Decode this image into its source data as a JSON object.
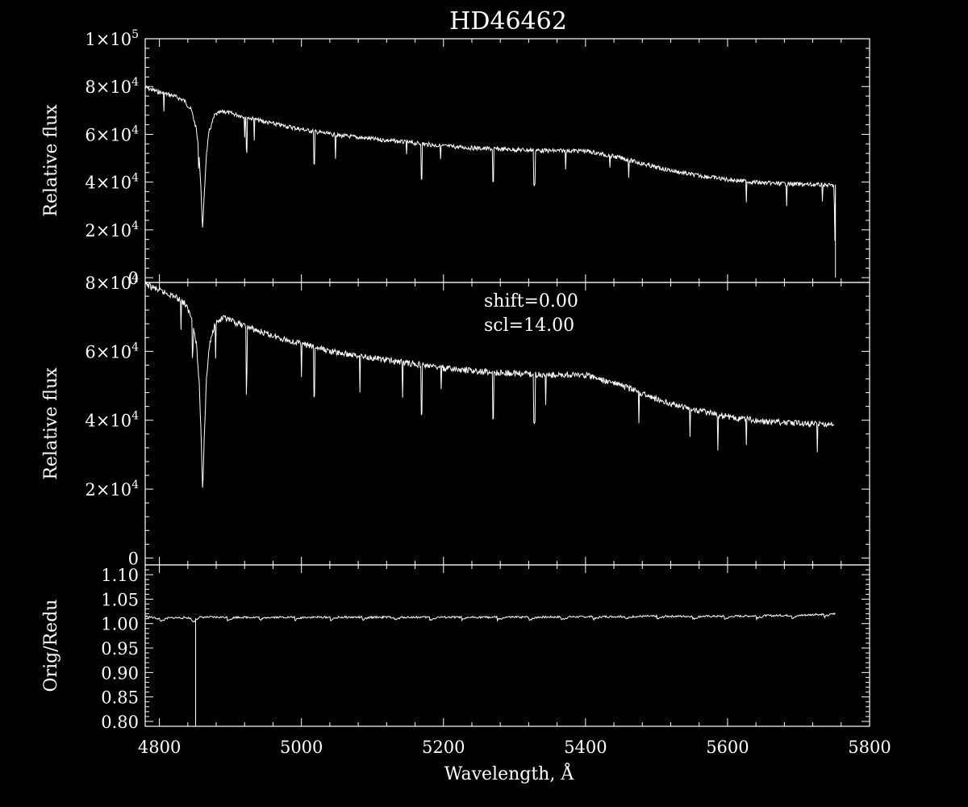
{
  "title": "HD46462",
  "chart_data": [
    {
      "type": "line",
      "panel": "top",
      "ylabel": "Relative flux",
      "xlim": [
        4780,
        5800
      ],
      "ylim": [
        -2000,
        100000
      ],
      "yticks": [
        {
          "value": 0,
          "label": "0"
        },
        {
          "value": 20000,
          "label": "2×10",
          "exp": "4"
        },
        {
          "value": 40000,
          "label": "4×10",
          "exp": "4"
        },
        {
          "value": 60000,
          "label": "6×10",
          "exp": "4"
        },
        {
          "value": 80000,
          "label": "8×10",
          "exp": "4"
        },
        {
          "value": 100000,
          "label": "1×10",
          "exp": "5"
        }
      ],
      "series": [
        {
          "x": [
            4780,
            4800,
            4820,
            4835,
            4845,
            4852,
            4856,
            4859,
            4861,
            4863,
            4866,
            4870,
            4878,
            4890,
            4910,
            4950,
            5000,
            5050,
            5100,
            5150,
            5200,
            5250,
            5300,
            5350,
            5400,
            5450,
            5500,
            5550,
            5600,
            5650,
            5700,
            5750,
            5752
          ],
          "y": [
            80500,
            78500,
            77000,
            75000,
            71000,
            63000,
            52000,
            35000,
            20000,
            35000,
            52000,
            62000,
            69000,
            70500,
            69000,
            66000,
            63000,
            60500,
            59000,
            57500,
            56000,
            55000,
            54500,
            54000,
            54000,
            51000,
            47000,
            44000,
            42000,
            40500,
            40000,
            39500,
            0
          ]
        }
      ],
      "absorption_lines": [
        4923,
        5018,
        5169,
        5270,
        5328
      ]
    },
    {
      "type": "line",
      "panel": "middle",
      "ylabel": "Relative flux",
      "annotations": [
        "shift=0.00",
        "scl=14.00"
      ],
      "xlim": [
        4780,
        5800
      ],
      "ylim": [
        -2000,
        80000
      ],
      "yticks": [
        {
          "value": 0,
          "label": "0"
        },
        {
          "value": 20000,
          "label": "2×10",
          "exp": "4"
        },
        {
          "value": 40000,
          "label": "4×10",
          "exp": "4"
        },
        {
          "value": 60000,
          "label": "6×10",
          "exp": "4"
        },
        {
          "value": 80000,
          "label": "8×10",
          "exp": "4"
        }
      ],
      "series": [
        {
          "x": [
            4780,
            4800,
            4820,
            4835,
            4845,
            4852,
            4856,
            4859,
            4861,
            4863,
            4866,
            4870,
            4878,
            4890,
            4910,
            4950,
            5000,
            5050,
            5100,
            5150,
            5200,
            5250,
            5300,
            5350,
            5400,
            5450,
            5500,
            5550,
            5600,
            5650,
            5700,
            5750
          ],
          "y": [
            80500,
            78500,
            77000,
            75000,
            71000,
            63000,
            52000,
            35000,
            20000,
            35000,
            52000,
            62000,
            69000,
            70500,
            69000,
            66000,
            63000,
            60500,
            59000,
            57500,
            56000,
            55000,
            54500,
            54000,
            54000,
            51000,
            47000,
            44000,
            42000,
            40500,
            40000,
            39500
          ]
        }
      ],
      "absorption_lines": [
        4923,
        5018,
        5169,
        5270,
        5328
      ]
    },
    {
      "type": "line",
      "panel": "bottom",
      "ylabel": "Orig/Redu",
      "xlabel": "Wavelength, Å",
      "xlim": [
        4780,
        5800
      ],
      "ylim": [
        0.79,
        1.12
      ],
      "xticks": [
        {
          "value": 4800,
          "label": "4800"
        },
        {
          "value": 5000,
          "label": "5000"
        },
        {
          "value": 5200,
          "label": "5200"
        },
        {
          "value": 5400,
          "label": "5400"
        },
        {
          "value": 5600,
          "label": "5600"
        },
        {
          "value": 5800,
          "label": "5800"
        }
      ],
      "yticks": [
        {
          "value": 0.8,
          "label": "0.80"
        },
        {
          "value": 0.85,
          "label": "0.85"
        },
        {
          "value": 0.9,
          "label": "0.90"
        },
        {
          "value": 0.95,
          "label": "0.95"
        },
        {
          "value": 1.0,
          "label": "1.00"
        },
        {
          "value": 1.05,
          "label": "1.05"
        },
        {
          "value": 1.1,
          "label": "1.10"
        }
      ],
      "series": [
        {
          "x": [
            4780,
            4800,
            4820,
            4840,
            4850,
            4851,
            4852,
            4860,
            4900,
            4950,
            5000,
            5100,
            5200,
            5300,
            5400,
            5500,
            5600,
            5700,
            5750
          ],
          "y": [
            1.015,
            1.01,
            1.012,
            1.012,
            1.008,
            0.79,
            1.012,
            1.013,
            1.013,
            1.013,
            1.013,
            1.013,
            1.013,
            1.013,
            1.014,
            1.015,
            1.015,
            1.017,
            1.02
          ]
        }
      ],
      "step_segments": [
        4800,
        4845,
        4895,
        4940,
        4990,
        5040,
        5085,
        5130,
        5180,
        5225,
        5275,
        5320,
        5365,
        5410,
        5455,
        5500,
        5550,
        5595,
        5640,
        5690,
        5735
      ]
    }
  ]
}
